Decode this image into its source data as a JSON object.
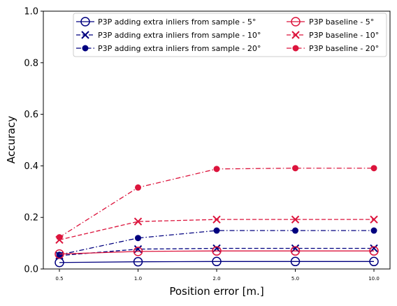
{
  "chart_data": {
    "type": "line",
    "title": "",
    "xlabel": "Position error [m.]",
    "ylabel": "Accuracy",
    "categories": [
      "0.5",
      "1.0",
      "2.0",
      "5.0",
      "10.0"
    ],
    "ylim": [
      0,
      1
    ],
    "yticks": [
      "0.0",
      "0.2",
      "0.4",
      "0.6",
      "0.8",
      "1.0"
    ],
    "grid": false,
    "legend": {
      "placement": "top-right",
      "columns": 2
    },
    "series": [
      {
        "name": "P3P adding extra inliers from sample - 5°",
        "color": "#00007f",
        "linestyle": "solid",
        "marker": "open-circle",
        "values": [
          0.025,
          0.028,
          0.029,
          0.029,
          0.029
        ]
      },
      {
        "name": "P3P adding extra inliers from sample - 10°",
        "color": "#00007f",
        "linestyle": "dashed",
        "marker": "x",
        "values": [
          0.052,
          0.077,
          0.08,
          0.08,
          0.08
        ]
      },
      {
        "name": "P3P adding extra inliers from sample - 20°",
        "color": "#00007f",
        "linestyle": "dashdot",
        "marker": "filled-circle",
        "values": [
          0.055,
          0.12,
          0.149,
          0.149,
          0.149
        ]
      },
      {
        "name": "P3P baseline - 5°",
        "color": "#dc143c",
        "linestyle": "solid",
        "marker": "open-circle",
        "values": [
          0.058,
          0.068,
          0.07,
          0.07,
          0.07
        ]
      },
      {
        "name": "P3P baseline - 10°",
        "color": "#dc143c",
        "linestyle": "dashed",
        "marker": "x",
        "values": [
          0.113,
          0.184,
          0.192,
          0.192,
          0.192
        ]
      },
      {
        "name": "P3P baseline - 20°",
        "color": "#dc143c",
        "linestyle": "dashdot",
        "marker": "filled-circle",
        "values": [
          0.123,
          0.316,
          0.388,
          0.391,
          0.391
        ]
      }
    ]
  }
}
